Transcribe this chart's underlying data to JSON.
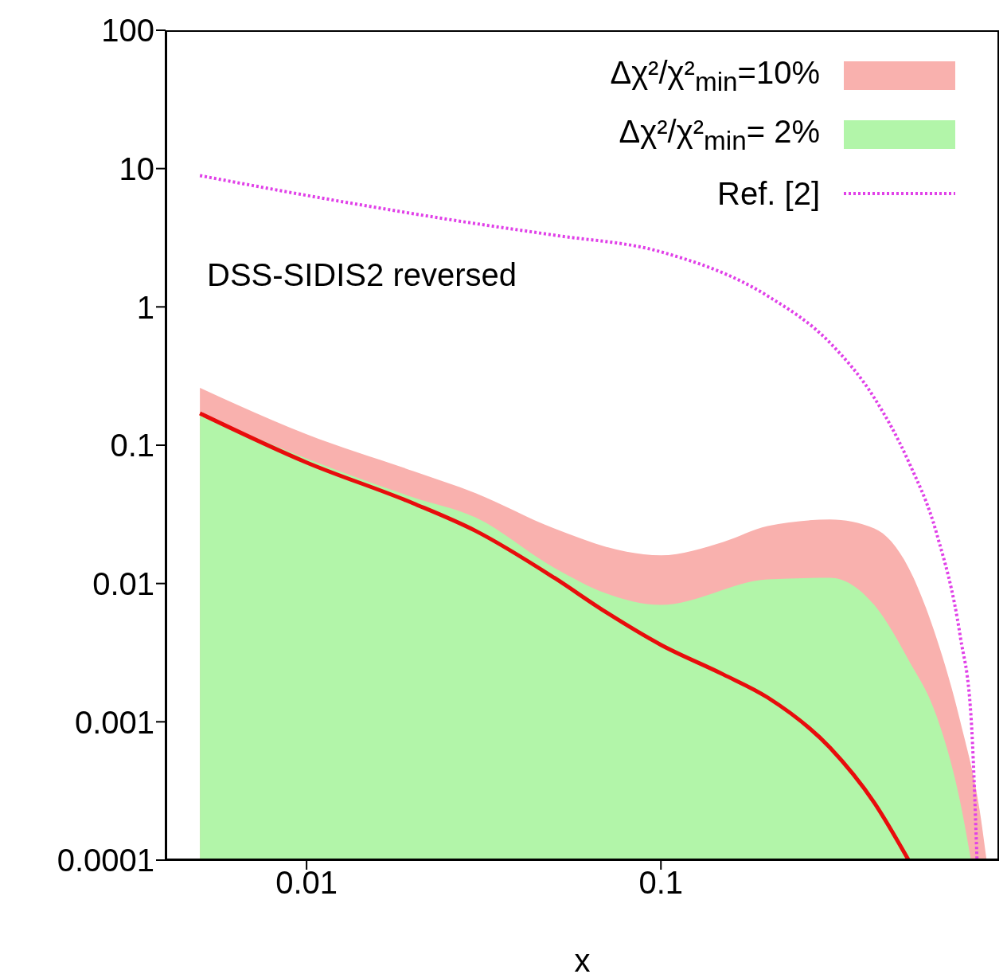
{
  "chart_data": {
    "type": "line",
    "xlabel": "x",
    "log": "xy",
    "xlim": [
      0.004,
      0.9
    ],
    "ylim": [
      0.0001,
      100
    ],
    "xticks": [
      0.01,
      0.1
    ],
    "yticks": [
      0.0001,
      0.001,
      0.01,
      0.1,
      1,
      10,
      100
    ],
    "grid": false,
    "legend": "top right",
    "annotations": [
      "DSS-SIDIS2 reversed"
    ],
    "series": [
      {
        "type": "area",
        "name": "Δχ²/χ²$_{min}$=10%",
        "color": "#f9b1ae",
        "x": [
          0.005,
          0.01,
          0.02,
          0.03,
          0.05,
          0.08,
          0.1,
          0.15,
          0.2,
          0.3,
          0.4,
          0.5,
          0.6,
          0.7,
          0.8,
          0.83
        ],
        "values": [
          0.26,
          0.12,
          0.065,
          0.045,
          0.025,
          0.017,
          0.016,
          0.02,
          0.026,
          0.029,
          0.025,
          0.013,
          0.004,
          0.001,
          0.0002,
          0.0001
        ]
      },
      {
        "type": "area",
        "name": "Δχ²/χ²$_{min}$= 2%",
        "color": "#b2f5a9",
        "x": [
          0.005,
          0.01,
          0.02,
          0.03,
          0.05,
          0.07,
          0.1,
          0.2,
          0.3,
          0.4,
          0.5,
          0.6,
          0.7,
          0.75
        ],
        "values": [
          0.17,
          0.08,
          0.042,
          0.03,
          0.013,
          0.0085,
          0.007,
          0.0107,
          0.011,
          0.007,
          0.0028,
          0.0011,
          0.00026,
          0.0001
        ]
      },
      {
        "color": "#e80c0c",
        "line_style": "solid",
        "x": [
          0.005,
          0.01,
          0.02,
          0.03,
          0.05,
          0.07,
          0.1,
          0.15,
          0.2,
          0.3,
          0.4,
          0.5
        ],
        "values": [
          0.17,
          0.075,
          0.038,
          0.024,
          0.011,
          0.0062,
          0.0036,
          0.0022,
          0.0015,
          0.00065,
          0.00026,
          0.0001
        ]
      },
      {
        "name": "Ref. [2]",
        "color": "#e040e8",
        "line_style": "dotted",
        "x": [
          0.005,
          0.01,
          0.03,
          0.05,
          0.1,
          0.2,
          0.3,
          0.4,
          0.5,
          0.6,
          0.7,
          0.75,
          0.78
        ],
        "values": [
          8.9,
          6.4,
          4.0,
          3.3,
          2.5,
          1.2,
          0.55,
          0.22,
          0.076,
          0.023,
          0.0041,
          0.0011,
          0.0001
        ]
      }
    ]
  }
}
